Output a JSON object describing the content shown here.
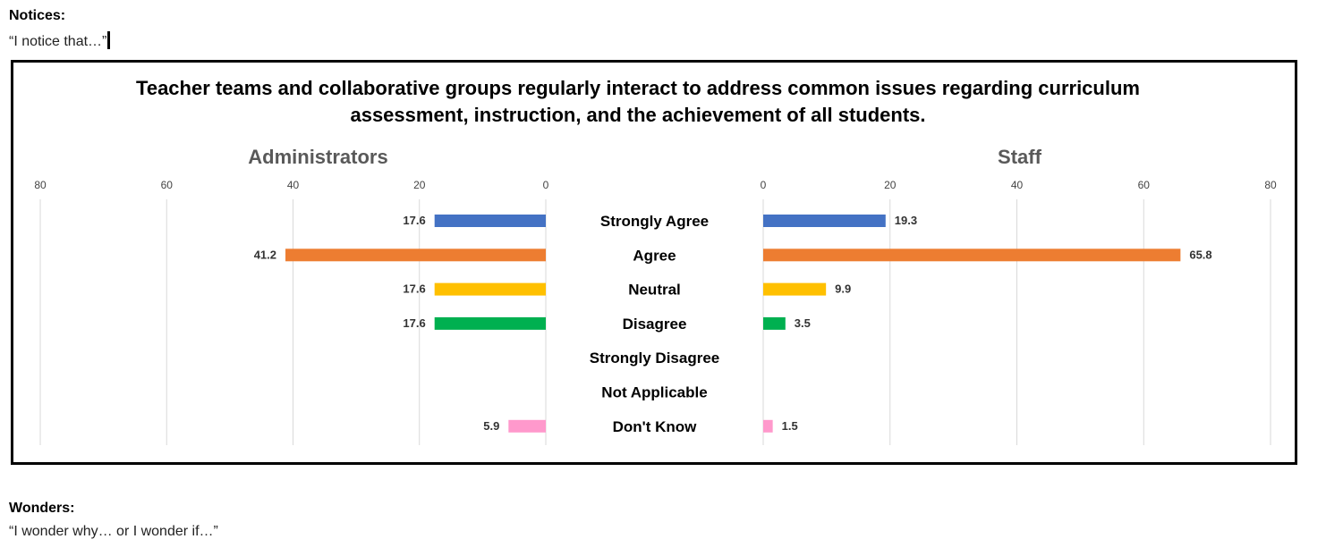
{
  "notices": {
    "heading": "Notices:",
    "prompt": "“I notice that…”"
  },
  "wonders": {
    "heading": "Wonders:",
    "prompt": "“I wonder why… or I wonder if…”"
  },
  "chart_data": {
    "type": "bar",
    "orientation": "horizontal",
    "layout": "butterfly",
    "title_line1": "Teacher teams and collaborative groups regularly interact to address common issues regarding curriculum",
    "title_line2": "assessment, instruction, and the achievement of all students.",
    "categories": [
      "Strongly Agree",
      "Agree",
      "Neutral",
      "Disagree",
      "Strongly Disagree",
      "Not Applicable",
      "Don't Know"
    ],
    "category_colors": [
      "#4472c4",
      "#ed7d31",
      "#ffc000",
      "#00b050",
      "#7f7f7f",
      "#7f7f7f",
      "#ff99cc"
    ],
    "xlim": [
      0,
      80
    ],
    "ticks": [
      0,
      20,
      40,
      60,
      80
    ],
    "grid": true,
    "panels": [
      {
        "name": "Administrators",
        "values": [
          17.6,
          41.2,
          17.6,
          17.6,
          null,
          null,
          5.9
        ]
      },
      {
        "name": "Staff",
        "values": [
          19.3,
          65.8,
          9.9,
          3.5,
          null,
          null,
          1.5
        ]
      }
    ]
  }
}
